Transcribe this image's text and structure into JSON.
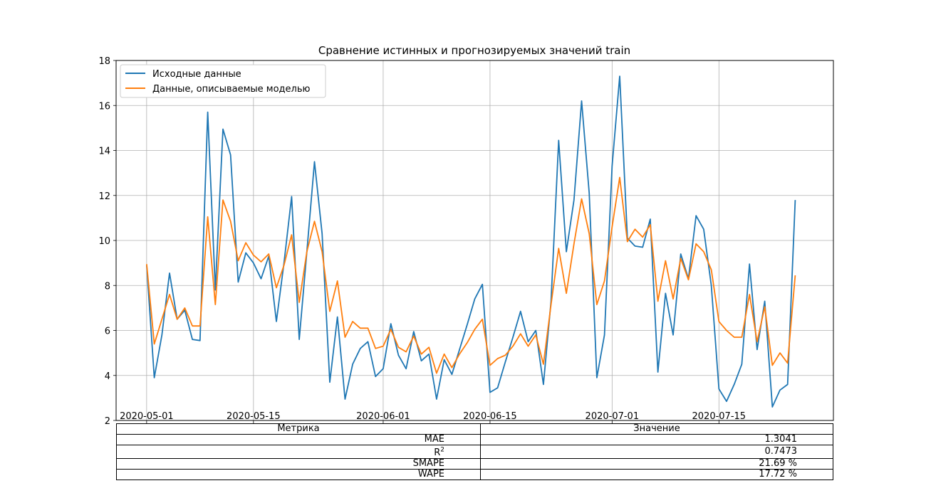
{
  "chart_data": {
    "type": "line",
    "title": "Сравнение истинных и прогнозируемых значений train",
    "xlabel": "",
    "ylabel": "",
    "x_start": "2020-05-01",
    "x_end": "2020-07-25",
    "xlim": [
      "2020-04-27",
      "2020-07-30"
    ],
    "ylim": [
      2,
      18
    ],
    "yticks": [
      2,
      4,
      6,
      8,
      10,
      12,
      14,
      16,
      18
    ],
    "xticks": [
      "2020-05-01",
      "2020-05-15",
      "2020-06-01",
      "2020-06-15",
      "2020-07-01",
      "2020-07-15"
    ],
    "grid": true,
    "legend_position": "upper-left",
    "series": [
      {
        "name": "Исходные данные",
        "color": "#1f77b4",
        "values": [
          8.9,
          3.9,
          5.8,
          8.55,
          6.5,
          6.9,
          5.6,
          5.55,
          15.7,
          7.8,
          14.95,
          13.8,
          8.15,
          9.45,
          9.0,
          8.3,
          9.3,
          6.4,
          9.0,
          11.95,
          5.6,
          9.5,
          13.5,
          10.3,
          3.7,
          6.6,
          2.95,
          4.5,
          5.2,
          5.5,
          3.95,
          4.3,
          6.3,
          4.9,
          4.3,
          5.95,
          4.65,
          4.95,
          2.95,
          4.7,
          4.05,
          5.15,
          6.25,
          7.4,
          8.05,
          3.25,
          3.45,
          4.6,
          5.7,
          6.85,
          5.5,
          6.0,
          3.6,
          7.3,
          14.45,
          9.5,
          11.8,
          16.2,
          12.1,
          3.9,
          5.8,
          13.3,
          17.3,
          10.1,
          9.75,
          9.7,
          10.95,
          4.15,
          7.65,
          5.8,
          9.4,
          8.3,
          11.1,
          10.5,
          8.0,
          3.4,
          2.85,
          3.6,
          4.5,
          8.95,
          5.15,
          7.3,
          2.6,
          3.35,
          3.6,
          11.8
        ]
      },
      {
        "name": "Данные, описываемые моделью",
        "color": "#ff7f0e",
        "values": [
          8.95,
          5.4,
          6.5,
          7.6,
          6.5,
          7.0,
          6.2,
          6.2,
          11.05,
          7.15,
          11.8,
          10.85,
          9.1,
          9.9,
          9.35,
          9.05,
          9.4,
          7.9,
          8.9,
          10.25,
          7.25,
          9.5,
          10.85,
          9.5,
          6.85,
          8.2,
          5.7,
          6.4,
          6.1,
          6.1,
          5.2,
          5.3,
          6.05,
          5.25,
          5.05,
          5.75,
          4.95,
          5.25,
          4.1,
          4.95,
          4.35,
          4.95,
          5.45,
          6.05,
          6.5,
          4.45,
          4.75,
          4.9,
          5.3,
          5.85,
          5.3,
          5.8,
          4.5,
          7.15,
          9.65,
          7.65,
          9.85,
          11.85,
          10.3,
          7.15,
          8.2,
          10.6,
          12.8,
          9.95,
          10.5,
          10.15,
          10.7,
          7.3,
          9.1,
          7.4,
          9.2,
          8.25,
          9.85,
          9.5,
          8.7,
          6.4,
          6.0,
          5.7,
          5.7,
          7.6,
          5.5,
          7.05,
          4.45,
          5.0,
          4.55,
          8.45
        ]
      }
    ]
  },
  "table": {
    "headers": [
      "Метрика",
      "Значение"
    ],
    "rows": [
      {
        "metric": "MAE",
        "value": "1.3041"
      },
      {
        "metric": "R^2",
        "value": "0.7473"
      },
      {
        "metric": "SMAPE",
        "value": "21.69 %"
      },
      {
        "metric": "WAPE",
        "value": "17.72 %"
      }
    ]
  }
}
